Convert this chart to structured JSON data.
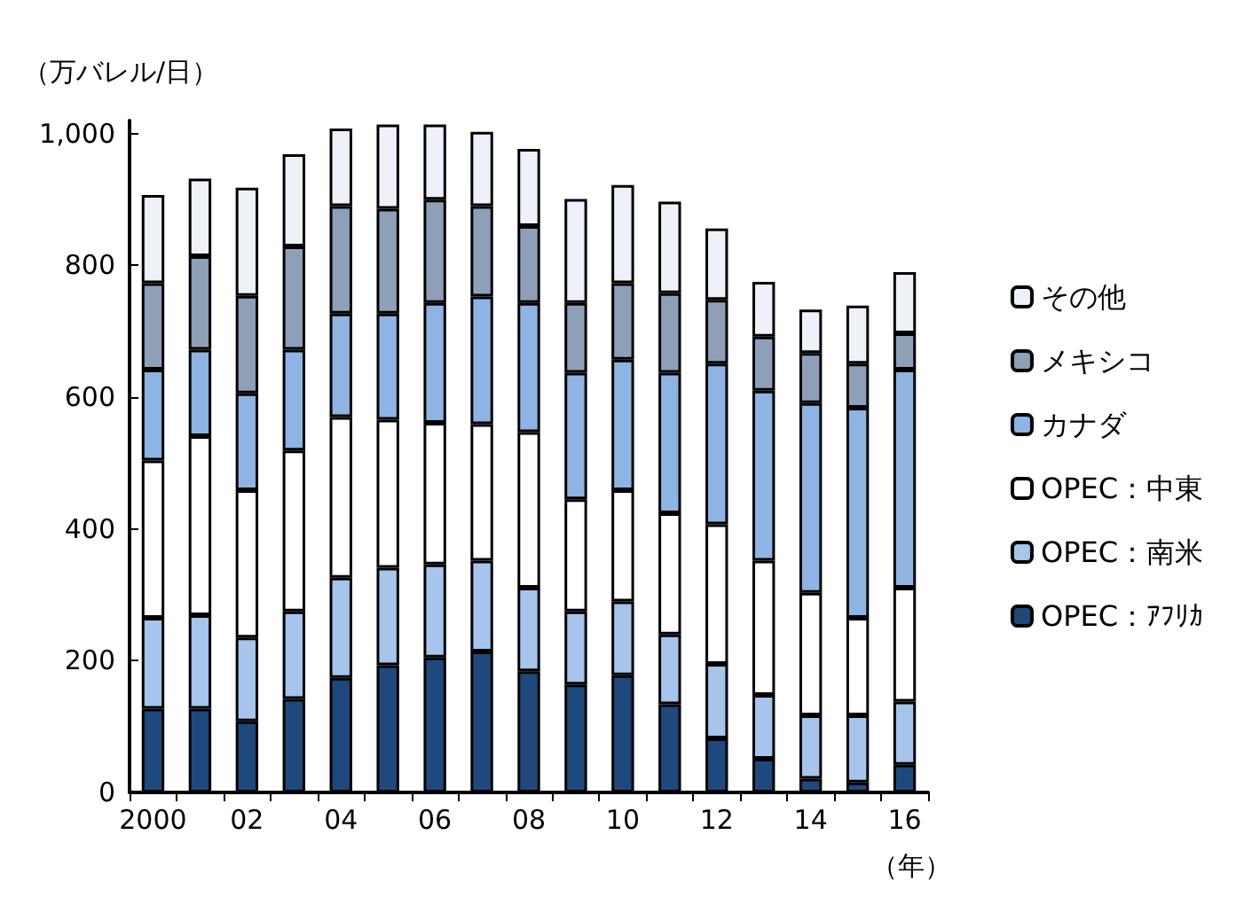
{
  "chart_data": {
    "type": "bar",
    "stacked": true,
    "ylabel": "（万バレル/日）",
    "xlabel": "（年）",
    "categories": [
      "2000",
      null,
      "02",
      null,
      "04",
      null,
      "06",
      null,
      "08",
      null,
      "10",
      null,
      "12",
      null,
      "14",
      null,
      "16"
    ],
    "series": [
      {
        "name": "OPEC：ｱﾌﾘｶ",
        "color": "#1f497d",
        "values": [
          127,
          127,
          108,
          142,
          174,
          193,
          205,
          214,
          184,
          164,
          178,
          134,
          82,
          51,
          21,
          15,
          42
        ]
      },
      {
        "name": "OPEC：南米",
        "color": "#a6c4ec",
        "values": [
          138,
          142,
          127,
          133,
          152,
          148,
          141,
          138,
          127,
          111,
          112,
          106,
          113,
          97,
          96,
          102,
          96
        ]
      },
      {
        "name": "OPEC：中東",
        "color": "#ffffff",
        "values": [
          239,
          272,
          224,
          244,
          244,
          225,
          215,
          207,
          236,
          170,
          169,
          184,
          212,
          204,
          186,
          148,
          173
        ]
      },
      {
        "name": "カナダ",
        "color": "#8db4e2",
        "values": [
          138,
          131,
          147,
          153,
          157,
          161,
          182,
          194,
          196,
          192,
          198,
          213,
          244,
          258,
          288,
          319,
          331
        ]
      },
      {
        "name": "メキシコ",
        "color": "#8e9fb8",
        "values": [
          131,
          142,
          148,
          157,
          163,
          159,
          157,
          137,
          117,
          106,
          116,
          121,
          97,
          82,
          76,
          67,
          55
        ]
      },
      {
        "name": "その他",
        "color": "#eef2f8",
        "values": [
          134,
          118,
          164,
          140,
          118,
          128,
          114,
          113,
          117,
          158,
          149,
          139,
          108,
          83,
          66,
          88,
          93
        ]
      }
    ],
    "ylim": [
      0,
      1020
    ],
    "yticks": [
      0,
      200,
      400,
      600,
      800,
      {
        "value": 1000,
        "label": "1,000"
      }
    ],
    "grid": false,
    "legend": "right"
  }
}
